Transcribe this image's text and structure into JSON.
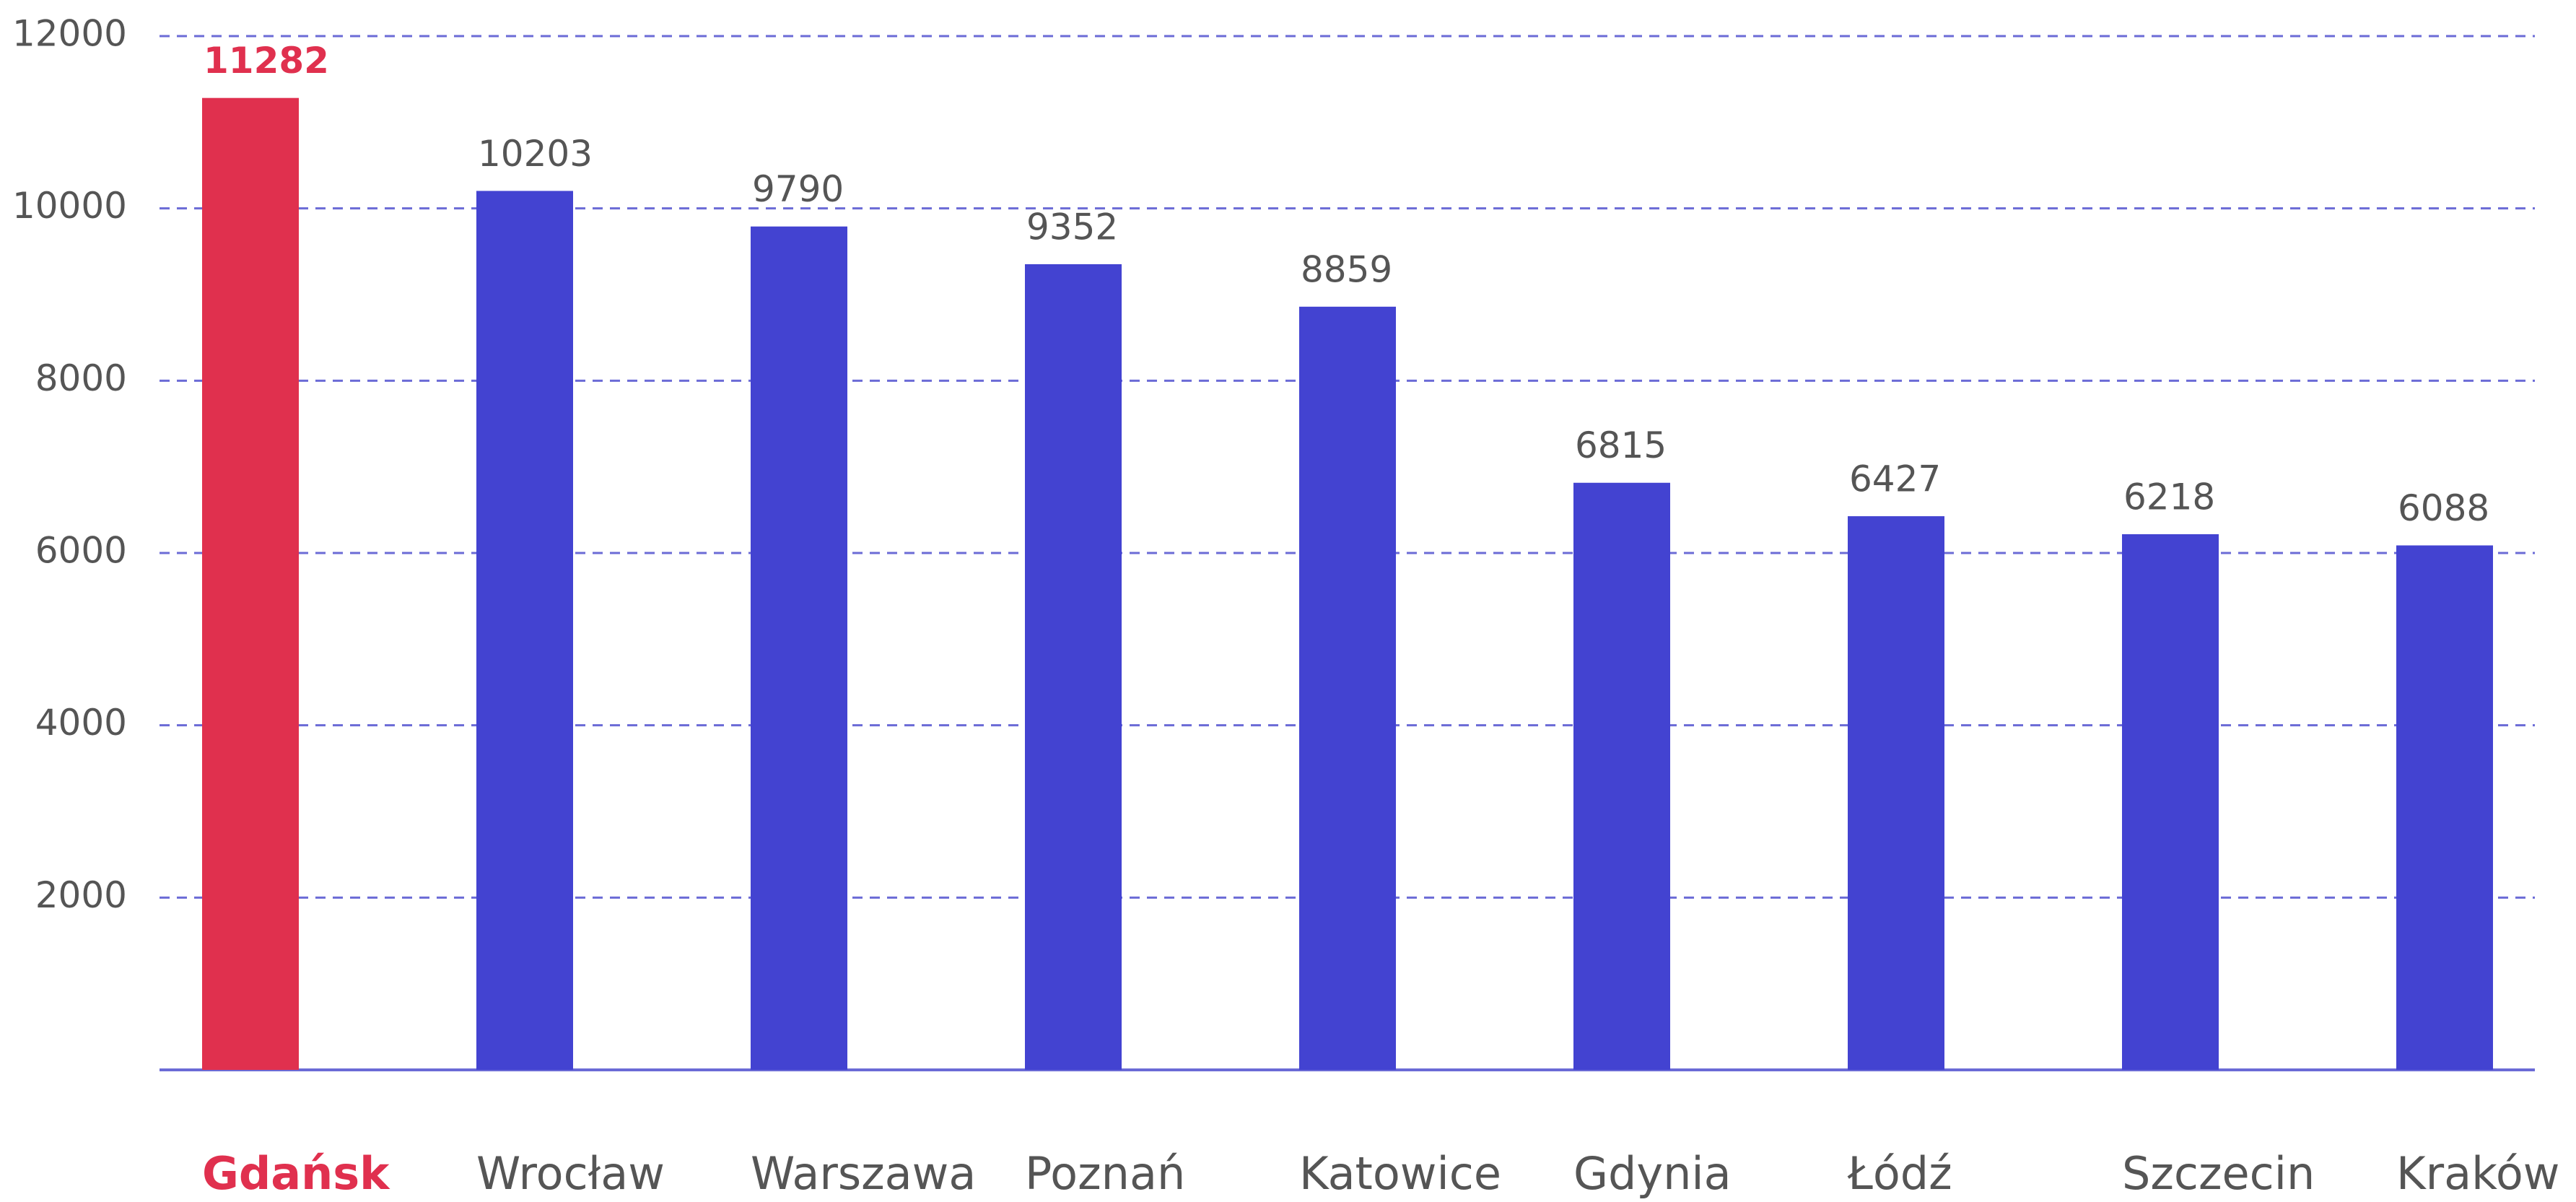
{
  "chart_data": {
    "type": "bar",
    "categories": [
      "Gdańsk",
      "Wrocław",
      "Warszawa",
      "Poznań",
      "Katowice",
      "Gdynia",
      "Łódź",
      "Szczecin",
      "Kraków"
    ],
    "values": [
      11282,
      10203,
      9790,
      9352,
      8859,
      6815,
      6427,
      6218,
      6088
    ],
    "color": "#4343d1",
    "colors": [
      "#e0304e",
      "#4343d1",
      "#4343d1",
      "#4343d1",
      "#4343d1",
      "#4343d1",
      "#4343d1",
      "#4343d1",
      "#4343d1"
    ],
    "ylim": [
      0,
      12000
    ],
    "yticks": [
      2000,
      4000,
      6000,
      8000,
      10000,
      12000
    ],
    "grid": true
  }
}
